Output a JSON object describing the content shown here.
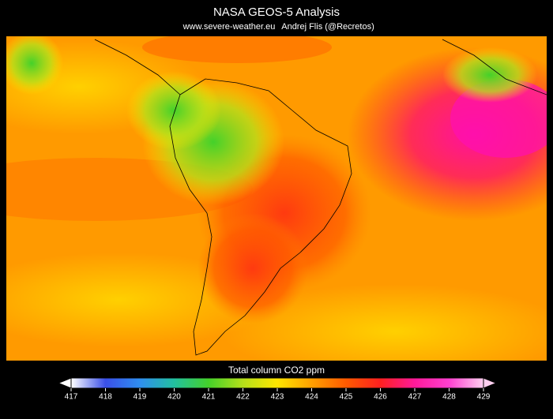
{
  "header": {
    "title": "NASA GEOS-5 Analysis",
    "website": "www.severe-weather.eu",
    "author": "Andrej Flis (@Recretos)"
  },
  "colorbar": {
    "label": "Total column CO2 ppm",
    "range": [
      417,
      429
    ],
    "ticks": [
      417,
      418,
      419,
      420,
      421,
      422,
      423,
      424,
      425,
      426,
      427,
      428,
      429
    ],
    "colors": [
      "#ffffff",
      "#3a4fe8",
      "#2f8ef0",
      "#22c0a0",
      "#44d12a",
      "#b5e01a",
      "#ffe600",
      "#ffa000",
      "#ff5a00",
      "#ff2020",
      "#ff1a9a",
      "#ff40d0",
      "#ffd0f0"
    ]
  }
}
